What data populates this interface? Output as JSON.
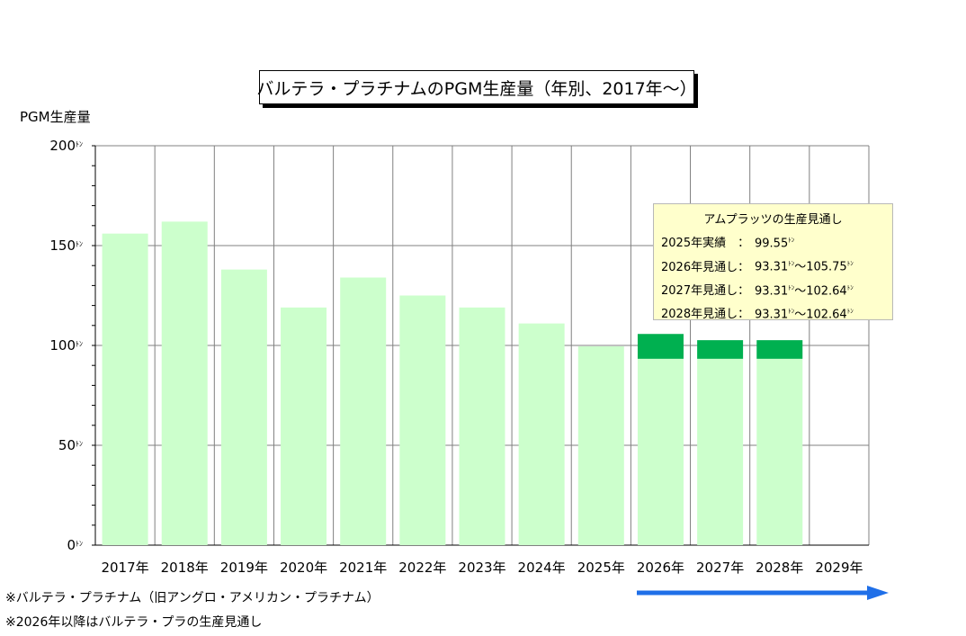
{
  "title": "バルテラ・プラチナムのPGM生産量（年別、2017年～）",
  "y_axis_title": "PGM生産量",
  "unit": "ﾄﾝ",
  "colors": {
    "bar_base": "#ccffcc",
    "bar_range": "#00b050",
    "grid": "#808080",
    "callout_bg": "#ffffcc",
    "arrow": "#1f6fe8"
  },
  "chart_data": {
    "type": "bar",
    "categories": [
      "2017年",
      "2018年",
      "2019年",
      "2020年",
      "2021年",
      "2022年",
      "2023年",
      "2024年",
      "2025年",
      "2026年",
      "2027年",
      "2028年",
      "2029年"
    ],
    "series": [
      {
        "values": [
          156,
          162,
          138,
          119,
          134,
          125,
          119,
          111,
          99.55,
          93.31,
          93.31,
          93.31,
          null
        ]
      },
      {
        "values": [
          null,
          null,
          null,
          null,
          null,
          null,
          null,
          null,
          null,
          12.44,
          9.33,
          9.33,
          null
        ]
      }
    ],
    "stacked": true,
    "ylim": [
      0,
      200
    ],
    "yticks": [
      0,
      50,
      100,
      150,
      200
    ],
    "ytick_labels": [
      "0",
      "50",
      "100",
      "150",
      "200"
    ],
    "grid": true,
    "ylabel": "PGM生産量"
  },
  "callout": {
    "title": "アムプラッツの生産見通し",
    "rows": [
      {
        "label": "2025年実績　：",
        "value": "99.55",
        "suffix": ""
      },
      {
        "label": "2026年見通し：",
        "value": "93.31",
        "suffix": "～105.75"
      },
      {
        "label": "2027年見通し：",
        "value": "93.31",
        "suffix": "～102.64"
      },
      {
        "label": "2028年見通し：",
        "value": "93.31",
        "suffix": "～102.64"
      }
    ]
  },
  "notes": [
    "※バルテラ・プラチナム（旧アングロ・アメリカン・プラチナム）",
    "※2026年以降はバルテラ・プラの生産見通し"
  ]
}
